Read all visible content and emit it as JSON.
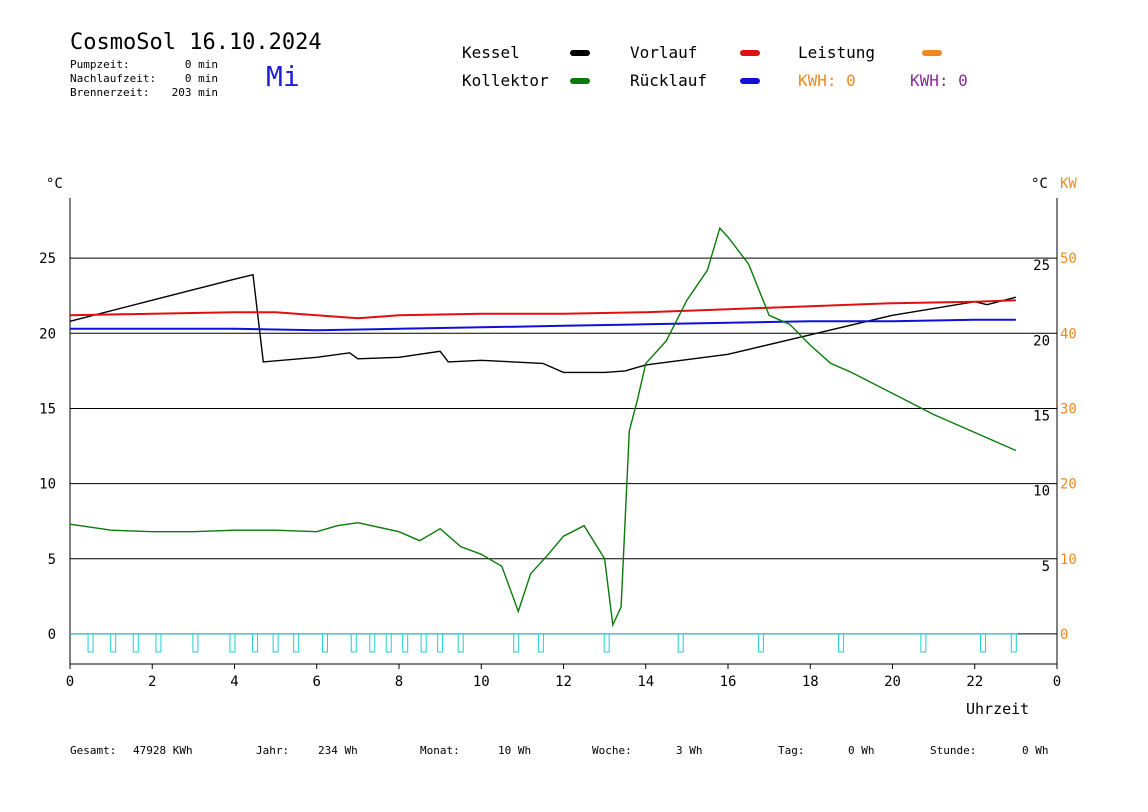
{
  "header": {
    "title": "CosmoSol 16.10.2024",
    "day": "Mi",
    "stats": [
      {
        "label": "Pumpzeit:",
        "value": "0 min"
      },
      {
        "label": "Nachlaufzeit:",
        "value": "0 min"
      },
      {
        "label": "Brennerzeit:",
        "value": "203 min"
      }
    ]
  },
  "legend": {
    "kessel": {
      "label": "Kessel",
      "color": "#000000"
    },
    "kollektor": {
      "label": "Kollektor",
      "color": "#0a7a0a"
    },
    "vorlauf": {
      "label": "Vorlauf",
      "color": "#e01010"
    },
    "ruecklauf": {
      "label": "Rücklauf",
      "color": "#1010d8"
    },
    "leistung": {
      "label": "Leistung",
      "color": "#f08a20"
    },
    "kwh_orange": {
      "text": "KWH: 0",
      "color": "#f08a20"
    },
    "kwh_purple": {
      "text": "KWH: 0",
      "color": "#8a2a9a"
    }
  },
  "axes": {
    "left_unit": "°C",
    "right_unit_c": "°C",
    "right_unit_kw": "KW",
    "xlabel": "Uhrzeit"
  },
  "footer": [
    {
      "label": "Gesamt:",
      "value": "47928 KWh"
    },
    {
      "label": "Jahr:",
      "value": "234 Wh"
    },
    {
      "label": "Monat:",
      "value": "10 Wh"
    },
    {
      "label": "Woche:",
      "value": "3 Wh"
    },
    {
      "label": "Tag:",
      "value": "0 Wh"
    },
    {
      "label": "Stunde:",
      "value": "0 Wh"
    }
  ],
  "chart_data": {
    "type": "line",
    "x_range": [
      0,
      24
    ],
    "x_ticks": [
      "0",
      "2",
      "4",
      "6",
      "8",
      "10",
      "12",
      "14",
      "16",
      "18",
      "20",
      "22",
      "0"
    ],
    "y_left_range": [
      -2,
      29
    ],
    "y_left_ticks": [
      0,
      5,
      10,
      15,
      20,
      25
    ],
    "y_right_c_ticks": [
      "5",
      "10",
      "15",
      "20",
      "25"
    ],
    "y_right_kw_ticks": [
      "0",
      "10",
      "20",
      "30",
      "40",
      "50"
    ],
    "grid_lines": [
      5,
      10,
      15,
      20,
      25
    ],
    "grid": true,
    "series": [
      {
        "name": "Kessel",
        "color": "#000000",
        "x": [
          0,
          2,
          4,
          4.45,
          4.7,
          6,
          6.8,
          7,
          8,
          9,
          9.2,
          10,
          11.5,
          12,
          13,
          13.5,
          14,
          16,
          18,
          20,
          22,
          22.3,
          23
        ],
        "y": [
          20.8,
          22.2,
          23.6,
          23.9,
          18.1,
          18.4,
          18.7,
          18.3,
          18.4,
          18.8,
          18.1,
          18.2,
          18.0,
          17.4,
          17.4,
          17.5,
          17.9,
          18.6,
          19.9,
          21.2,
          22.1,
          21.9,
          22.4
        ]
      },
      {
        "name": "Vorlauf",
        "color": "#e01010",
        "x": [
          0,
          2,
          4,
          5,
          6,
          7,
          8,
          10,
          12,
          14,
          16,
          18,
          20,
          22,
          23
        ],
        "y": [
          21.2,
          21.3,
          21.4,
          21.4,
          21.2,
          21.0,
          21.2,
          21.3,
          21.3,
          21.4,
          21.6,
          21.8,
          22.0,
          22.1,
          22.2
        ]
      },
      {
        "name": "Rücklauf",
        "color": "#1010d8",
        "x": [
          0,
          2,
          4,
          6,
          8,
          10,
          12,
          14,
          16,
          18,
          20,
          22,
          23
        ],
        "y": [
          20.3,
          20.3,
          20.3,
          20.2,
          20.3,
          20.4,
          20.5,
          20.6,
          20.7,
          20.8,
          20.8,
          20.9,
          20.9
        ]
      },
      {
        "name": "Kollektor",
        "color": "#0a7a0a",
        "x": [
          0,
          1,
          2,
          3,
          4,
          5,
          6,
          6.5,
          7,
          7.5,
          8,
          8.5,
          9,
          9.5,
          10,
          10.5,
          10.9,
          11.2,
          11.6,
          12,
          12.5,
          13,
          13.2,
          13.4,
          13.6,
          13.8,
          14,
          14.5,
          15,
          15.5,
          15.8,
          16,
          16.5,
          17,
          17.5,
          18,
          18.5,
          19,
          20,
          21,
          22,
          23
        ],
        "y": [
          7.3,
          6.9,
          6.8,
          6.8,
          6.9,
          6.9,
          6.8,
          7.2,
          7.4,
          7.1,
          6.8,
          6.2,
          7.0,
          5.8,
          5.3,
          4.5,
          1.5,
          4.0,
          5.2,
          6.5,
          7.2,
          5.0,
          0.6,
          1.8,
          13.5,
          15.6,
          18.0,
          19.5,
          22.2,
          24.2,
          27.0,
          26.4,
          24.6,
          21.2,
          20.6,
          19.2,
          18.0,
          17.4,
          16.0,
          14.6,
          13.4,
          12.2
        ]
      },
      {
        "name": "Leistung",
        "color": "#f08a20",
        "x": [
          0,
          23
        ],
        "y": [
          0,
          0
        ]
      }
    ],
    "pump_pulses": {
      "color": "#20d0d0",
      "baseline": 0,
      "x": [
        0.5,
        1.05,
        1.6,
        2.15,
        3.05,
        3.95,
        4.5,
        5.0,
        5.5,
        6.2,
        6.9,
        7.35,
        7.75,
        8.15,
        8.6,
        9.0,
        9.5,
        10.85,
        11.45,
        13.05,
        14.85,
        16.8,
        18.75,
        20.75,
        22.2,
        22.95
      ],
      "depth": -1.2
    }
  }
}
